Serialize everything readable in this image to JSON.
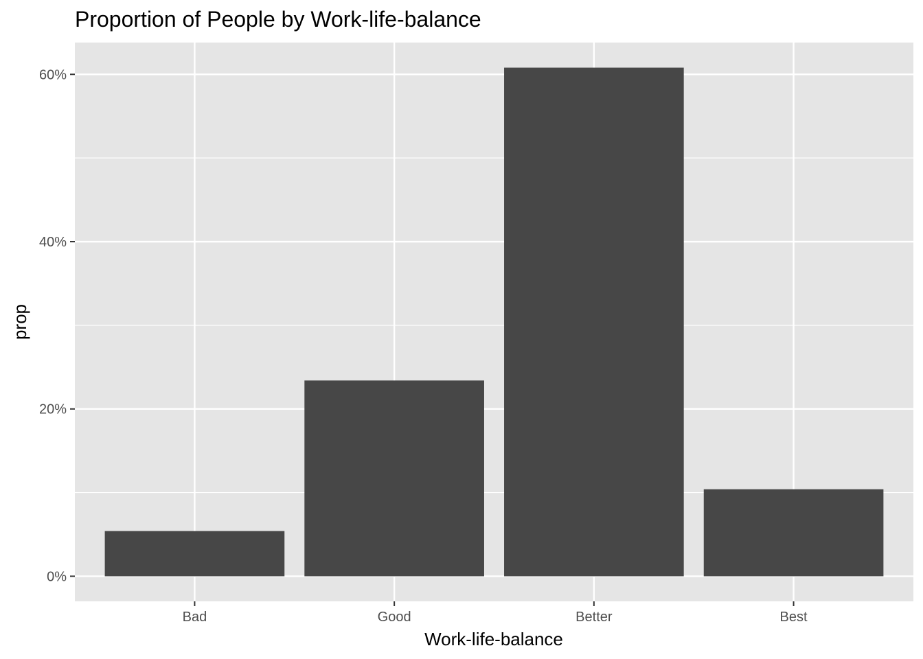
{
  "chart_data": {
    "type": "bar",
    "title": "Proportion of People by Work-life-balance",
    "xlabel": "Work-life-balance",
    "ylabel": "prop",
    "categories": [
      "Bad",
      "Good",
      "Better",
      "Best"
    ],
    "values": [
      0.054,
      0.234,
      0.608,
      0.104
    ],
    "ylim": [
      -0.03,
      0.638
    ],
    "yticks": [
      0,
      0.2,
      0.4,
      0.6
    ],
    "ytick_labels": [
      "0%",
      "20%",
      "40%",
      "60%"
    ],
    "grid": true,
    "legend": "none",
    "colors": {
      "bar": "#474747",
      "panel": "#e5e5e5",
      "grid": "#ffffff",
      "tick_text": "#4d4d4d",
      "tick_mark": "#333333"
    }
  }
}
